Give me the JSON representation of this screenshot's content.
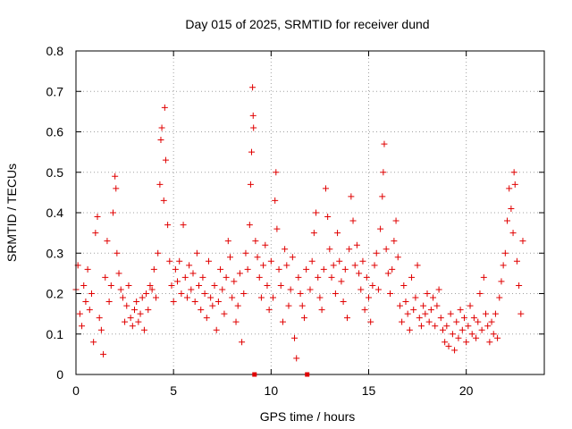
{
  "chart_data": {
    "type": "scatter",
    "title": "Day 015 of 2025, SRMTID for receiver dund",
    "xlabel": "GPS time / hours",
    "ylabel": "SRMTID / TECUs",
    "xlim": [
      0,
      24
    ],
    "ylim": [
      0,
      0.8
    ],
    "xticks": [
      0,
      5,
      10,
      15,
      20
    ],
    "xtick_labels": [
      "0",
      "5",
      "10",
      "15",
      "20"
    ],
    "yticks": [
      0,
      0.1,
      0.2,
      0.3,
      0.4,
      0.5,
      0.6,
      0.7,
      0.8
    ],
    "ytick_labels": [
      "0",
      "0.1",
      "0.2",
      "0.3",
      "0.4",
      "0.5",
      "0.6",
      "0.7",
      "0.8"
    ],
    "grid": true,
    "marker": "plus",
    "series_color": "#e00000",
    "gap_markers_x": [
      9.15,
      11.85
    ],
    "series": [
      {
        "name": "SRMTID",
        "points": [
          [
            0.0,
            0.21
          ],
          [
            0.1,
            0.27
          ],
          [
            0.2,
            0.15
          ],
          [
            0.3,
            0.12
          ],
          [
            0.4,
            0.22
          ],
          [
            0.5,
            0.18
          ],
          [
            0.6,
            0.26
          ],
          [
            0.7,
            0.16
          ],
          [
            0.8,
            0.2
          ],
          [
            0.9,
            0.08
          ],
          [
            1.0,
            0.35
          ],
          [
            1.1,
            0.39
          ],
          [
            1.2,
            0.14
          ],
          [
            1.3,
            0.11
          ],
          [
            1.4,
            0.05
          ],
          [
            1.5,
            0.24
          ],
          [
            1.6,
            0.33
          ],
          [
            1.7,
            0.18
          ],
          [
            1.8,
            0.22
          ],
          [
            1.9,
            0.4
          ],
          [
            2.0,
            0.49
          ],
          [
            2.05,
            0.46
          ],
          [
            2.1,
            0.3
          ],
          [
            2.2,
            0.25
          ],
          [
            2.3,
            0.21
          ],
          [
            2.4,
            0.19
          ],
          [
            2.5,
            0.13
          ],
          [
            2.6,
            0.17
          ],
          [
            2.7,
            0.22
          ],
          [
            2.8,
            0.14
          ],
          [
            2.9,
            0.12
          ],
          [
            3.0,
            0.16
          ],
          [
            3.1,
            0.18
          ],
          [
            3.2,
            0.13
          ],
          [
            3.3,
            0.15
          ],
          [
            3.4,
            0.19
          ],
          [
            3.5,
            0.11
          ],
          [
            3.6,
            0.2
          ],
          [
            3.7,
            0.16
          ],
          [
            3.8,
            0.22
          ],
          [
            3.9,
            0.21
          ],
          [
            4.0,
            0.26
          ],
          [
            4.1,
            0.19
          ],
          [
            4.2,
            0.3
          ],
          [
            4.3,
            0.47
          ],
          [
            4.35,
            0.58
          ],
          [
            4.4,
            0.61
          ],
          [
            4.5,
            0.43
          ],
          [
            4.55,
            0.66
          ],
          [
            4.6,
            0.53
          ],
          [
            4.7,
            0.37
          ],
          [
            4.8,
            0.28
          ],
          [
            4.9,
            0.22
          ],
          [
            5.0,
            0.18
          ],
          [
            5.1,
            0.26
          ],
          [
            5.2,
            0.23
          ],
          [
            5.3,
            0.28
          ],
          [
            5.4,
            0.2
          ],
          [
            5.5,
            0.37
          ],
          [
            5.6,
            0.24
          ],
          [
            5.7,
            0.19
          ],
          [
            5.8,
            0.27
          ],
          [
            5.9,
            0.21
          ],
          [
            6.0,
            0.25
          ],
          [
            6.1,
            0.18
          ],
          [
            6.2,
            0.3
          ],
          [
            6.3,
            0.22
          ],
          [
            6.4,
            0.16
          ],
          [
            6.5,
            0.24
          ],
          [
            6.6,
            0.2
          ],
          [
            6.7,
            0.14
          ],
          [
            6.8,
            0.28
          ],
          [
            6.9,
            0.19
          ],
          [
            7.0,
            0.17
          ],
          [
            7.1,
            0.22
          ],
          [
            7.2,
            0.11
          ],
          [
            7.3,
            0.18
          ],
          [
            7.4,
            0.26
          ],
          [
            7.5,
            0.21
          ],
          [
            7.6,
            0.15
          ],
          [
            7.7,
            0.24
          ],
          [
            7.8,
            0.33
          ],
          [
            7.9,
            0.29
          ],
          [
            8.0,
            0.19
          ],
          [
            8.1,
            0.23
          ],
          [
            8.2,
            0.13
          ],
          [
            8.3,
            0.17
          ],
          [
            8.4,
            0.25
          ],
          [
            8.5,
            0.08
          ],
          [
            8.6,
            0.2
          ],
          [
            8.7,
            0.3
          ],
          [
            8.8,
            0.26
          ],
          [
            8.9,
            0.37
          ],
          [
            8.95,
            0.47
          ],
          [
            9.0,
            0.55
          ],
          [
            9.05,
            0.71
          ],
          [
            9.08,
            0.64
          ],
          [
            9.1,
            0.61
          ],
          [
            9.2,
            0.33
          ],
          [
            9.3,
            0.29
          ],
          [
            9.4,
            0.24
          ],
          [
            9.5,
            0.19
          ],
          [
            9.6,
            0.27
          ],
          [
            9.7,
            0.32
          ],
          [
            9.8,
            0.22
          ],
          [
            9.9,
            0.16
          ],
          [
            10.0,
            0.28
          ],
          [
            10.1,
            0.19
          ],
          [
            10.2,
            0.43
          ],
          [
            10.25,
            0.5
          ],
          [
            10.3,
            0.36
          ],
          [
            10.4,
            0.26
          ],
          [
            10.5,
            0.22
          ],
          [
            10.6,
            0.13
          ],
          [
            10.7,
            0.31
          ],
          [
            10.8,
            0.27
          ],
          [
            10.9,
            0.17
          ],
          [
            11.0,
            0.21
          ],
          [
            11.1,
            0.29
          ],
          [
            11.2,
            0.09
          ],
          [
            11.3,
            0.04
          ],
          [
            11.4,
            0.24
          ],
          [
            11.5,
            0.2
          ],
          [
            11.6,
            0.17
          ],
          [
            11.7,
            0.14
          ],
          [
            11.8,
            0.26
          ],
          [
            12.0,
            0.21
          ],
          [
            12.1,
            0.28
          ],
          [
            12.2,
            0.35
          ],
          [
            12.3,
            0.4
          ],
          [
            12.4,
            0.24
          ],
          [
            12.5,
            0.19
          ],
          [
            12.6,
            0.16
          ],
          [
            12.7,
            0.26
          ],
          [
            12.8,
            0.46
          ],
          [
            12.9,
            0.39
          ],
          [
            13.0,
            0.31
          ],
          [
            13.1,
            0.24
          ],
          [
            13.2,
            0.27
          ],
          [
            13.3,
            0.2
          ],
          [
            13.4,
            0.35
          ],
          [
            13.5,
            0.28
          ],
          [
            13.6,
            0.23
          ],
          [
            13.7,
            0.18
          ],
          [
            13.8,
            0.26
          ],
          [
            13.9,
            0.14
          ],
          [
            14.0,
            0.31
          ],
          [
            14.1,
            0.44
          ],
          [
            14.2,
            0.38
          ],
          [
            14.3,
            0.27
          ],
          [
            14.4,
            0.32
          ],
          [
            14.5,
            0.25
          ],
          [
            14.6,
            0.21
          ],
          [
            14.7,
            0.28
          ],
          [
            14.8,
            0.16
          ],
          [
            14.9,
            0.24
          ],
          [
            15.0,
            0.19
          ],
          [
            15.1,
            0.13
          ],
          [
            15.2,
            0.22
          ],
          [
            15.3,
            0.27
          ],
          [
            15.4,
            0.3
          ],
          [
            15.5,
            0.21
          ],
          [
            15.6,
            0.36
          ],
          [
            15.7,
            0.44
          ],
          [
            15.75,
            0.5
          ],
          [
            15.8,
            0.57
          ],
          [
            15.9,
            0.31
          ],
          [
            16.0,
            0.25
          ],
          [
            16.1,
            0.2
          ],
          [
            16.2,
            0.26
          ],
          [
            16.3,
            0.33
          ],
          [
            16.4,
            0.38
          ],
          [
            16.5,
            0.29
          ],
          [
            16.6,
            0.17
          ],
          [
            16.7,
            0.13
          ],
          [
            16.8,
            0.22
          ],
          [
            16.9,
            0.18
          ],
          [
            17.0,
            0.15
          ],
          [
            17.1,
            0.11
          ],
          [
            17.2,
            0.24
          ],
          [
            17.3,
            0.16
          ],
          [
            17.4,
            0.19
          ],
          [
            17.5,
            0.27
          ],
          [
            17.6,
            0.14
          ],
          [
            17.7,
            0.12
          ],
          [
            17.8,
            0.17
          ],
          [
            17.9,
            0.15
          ],
          [
            18.0,
            0.2
          ],
          [
            18.1,
            0.13
          ],
          [
            18.2,
            0.16
          ],
          [
            18.3,
            0.19
          ],
          [
            18.4,
            0.12
          ],
          [
            18.5,
            0.17
          ],
          [
            18.6,
            0.21
          ],
          [
            18.7,
            0.14
          ],
          [
            18.8,
            0.11
          ],
          [
            18.9,
            0.08
          ],
          [
            19.0,
            0.12
          ],
          [
            19.1,
            0.07
          ],
          [
            19.2,
            0.15
          ],
          [
            19.3,
            0.1
          ],
          [
            19.4,
            0.06
          ],
          [
            19.5,
            0.13
          ],
          [
            19.6,
            0.09
          ],
          [
            19.7,
            0.16
          ],
          [
            19.8,
            0.11
          ],
          [
            19.9,
            0.14
          ],
          [
            20.0,
            0.08
          ],
          [
            20.1,
            0.12
          ],
          [
            20.2,
            0.17
          ],
          [
            20.3,
            0.1
          ],
          [
            20.4,
            0.14
          ],
          [
            20.5,
            0.09
          ],
          [
            20.6,
            0.13
          ],
          [
            20.7,
            0.2
          ],
          [
            20.8,
            0.11
          ],
          [
            20.9,
            0.24
          ],
          [
            21.0,
            0.15
          ],
          [
            21.1,
            0.12
          ],
          [
            21.2,
            0.08
          ],
          [
            21.3,
            0.13
          ],
          [
            21.4,
            0.1
          ],
          [
            21.5,
            0.15
          ],
          [
            21.6,
            0.09
          ],
          [
            21.7,
            0.19
          ],
          [
            21.8,
            0.23
          ],
          [
            21.9,
            0.27
          ],
          [
            22.0,
            0.3
          ],
          [
            22.1,
            0.38
          ],
          [
            22.2,
            0.46
          ],
          [
            22.3,
            0.41
          ],
          [
            22.4,
            0.35
          ],
          [
            22.45,
            0.5
          ],
          [
            22.5,
            0.47
          ],
          [
            22.6,
            0.28
          ],
          [
            22.7,
            0.22
          ],
          [
            22.8,
            0.15
          ],
          [
            22.9,
            0.33
          ]
        ]
      }
    ]
  }
}
